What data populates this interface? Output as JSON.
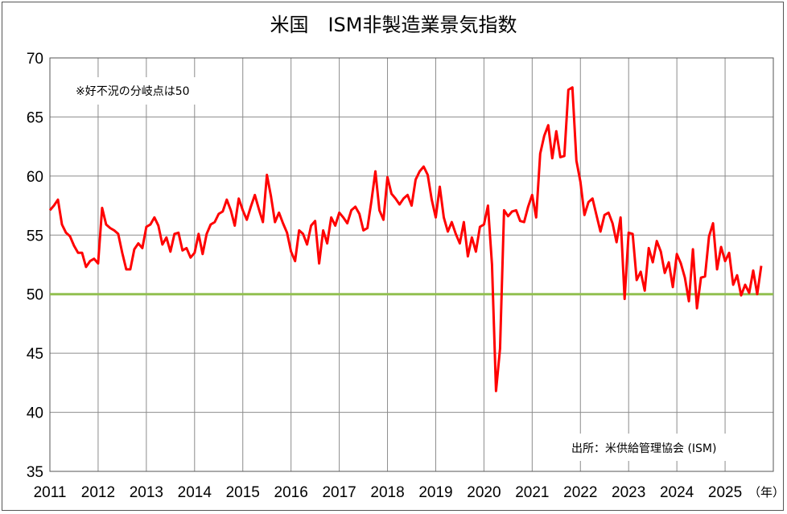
{
  "chart_data": {
    "type": "line",
    "title": "米国　ISM非製造業景気指数",
    "annotation": "※好不況の分岐点は50",
    "source": "出所：米供給管理協会 (ISM)",
    "x_unit": "（年）",
    "ylim": [
      35,
      70
    ],
    "y_ticks": [
      "35",
      "40",
      "45",
      "50",
      "55",
      "60",
      "65",
      "70"
    ],
    "x_ticks": [
      "2011",
      "2012",
      "2013",
      "2014",
      "2015",
      "2016",
      "2017",
      "2018",
      "2019",
      "2020",
      "2021",
      "2022",
      "2023",
      "2024",
      "2025"
    ],
    "grid": true,
    "threshold": {
      "value": 50,
      "color": "#92c050"
    },
    "series": [
      {
        "color": "#ff0000",
        "start": "2011-01",
        "frequency": "monthly",
        "values": [
          57.1,
          57.5,
          58.0,
          55.9,
          55.2,
          54.9,
          54.1,
          53.5,
          53.5,
          52.3,
          52.8,
          53.0,
          52.6,
          57.3,
          55.9,
          55.6,
          55.4,
          55.1,
          53.5,
          52.1,
          52.1,
          53.8,
          54.3,
          53.9,
          55.7,
          55.9,
          56.5,
          55.8,
          54.2,
          54.8,
          53.6,
          55.1,
          55.2,
          53.7,
          53.9,
          53.1,
          53.5,
          55.1,
          53.4,
          55.1,
          55.9,
          56.1,
          56.8,
          57.0,
          58.0,
          57.1,
          55.8,
          58.1,
          57.1,
          56.3,
          57.4,
          58.4,
          57.2,
          56.1,
          60.1,
          58.3,
          56.1,
          56.9,
          56.0,
          55.2,
          53.6,
          52.8,
          55.4,
          55.1,
          54.2,
          55.8,
          56.2,
          52.6,
          55.4,
          54.3,
          56.5,
          55.8,
          56.9,
          56.5,
          56.0,
          57.1,
          57.4,
          56.8,
          55.4,
          55.6,
          57.9,
          60.4,
          57.1,
          56.3,
          59.9,
          58.5,
          58.1,
          57.6,
          58.1,
          58.4,
          57.5,
          59.7,
          60.4,
          60.8,
          60.1,
          58.0,
          56.5,
          59.1,
          56.5,
          55.3,
          56.1,
          55.1,
          54.3,
          56.1,
          53.2,
          54.8,
          53.6,
          55.7,
          55.9,
          57.5,
          52.5,
          41.8,
          45.4,
          57.1,
          56.6,
          57.0,
          57.1,
          56.2,
          56.1,
          57.4,
          58.4,
          56.5,
          61.9,
          63.4,
          64.3,
          61.5,
          63.8,
          61.6,
          61.7,
          67.3,
          67.5,
          61.3,
          59.5,
          56.7,
          57.8,
          58.1,
          56.7,
          55.3,
          56.7,
          56.9,
          56.0,
          54.4,
          56.5,
          49.6,
          55.2,
          55.1,
          51.2,
          51.9,
          50.3,
          53.9,
          52.7,
          54.5,
          53.6,
          51.8,
          52.7,
          50.6,
          53.4,
          52.6,
          51.4,
          49.4,
          53.8,
          48.8,
          51.4,
          51.5,
          54.9,
          56.0,
          52.1,
          54.0,
          52.8,
          53.5,
          50.8,
          51.6,
          49.9,
          50.8,
          50.1,
          52.0,
          50.0,
          52.4
        ]
      }
    ]
  }
}
